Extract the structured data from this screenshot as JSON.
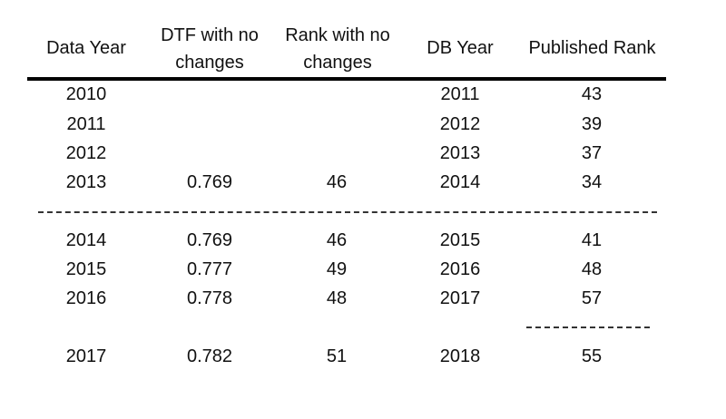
{
  "headers": {
    "data_year": "Data Year",
    "dtf": "DTF with no changes",
    "rank": "Rank with no changes",
    "db_year": "DB Year",
    "published_rank": "Published Rank"
  },
  "rows": [
    {
      "data_year": "2010",
      "dtf": "",
      "rank": "",
      "db_year": "2011",
      "published_rank": "43"
    },
    {
      "data_year": "2011",
      "dtf": "",
      "rank": "",
      "db_year": "2012",
      "published_rank": "39"
    },
    {
      "data_year": "2012",
      "dtf": "",
      "rank": "",
      "db_year": "2013",
      "published_rank": "37"
    },
    {
      "data_year": "2013",
      "dtf": "0.769",
      "rank": "46",
      "db_year": "2014",
      "published_rank": "34"
    },
    {
      "data_year": "2014",
      "dtf": "0.769",
      "rank": "46",
      "db_year": "2015",
      "published_rank": "41"
    },
    {
      "data_year": "2015",
      "dtf": "0.777",
      "rank": "49",
      "db_year": "2016",
      "published_rank": "48"
    },
    {
      "data_year": "2016",
      "dtf": "0.778",
      "rank": "48",
      "db_year": "2017",
      "published_rank": "57"
    },
    {
      "data_year": "2017",
      "dtf": "0.782",
      "rank": "51",
      "db_year": "2018",
      "published_rank": "55"
    }
  ]
}
